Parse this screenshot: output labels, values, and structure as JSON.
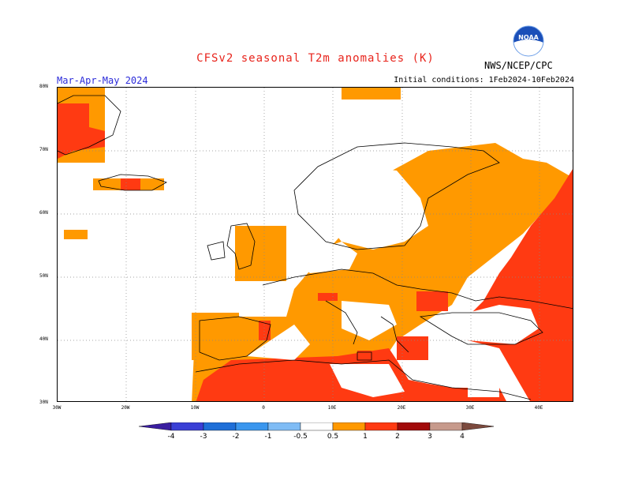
{
  "title": "CFSv2 seasonal T2m anomalies (K)",
  "agency": "NWS/NCEP/CPC",
  "logo_text": "NOAA",
  "season": "Mar-Apr-May 2024",
  "initial_conditions": "Initial conditions: 1Feb2024-10Feb2024",
  "lat_labels": [
    "80N",
    "70N",
    "60N",
    "50N",
    "40N",
    "30N"
  ],
  "lon_labels": [
    "30W",
    "20W",
    "10W",
    "0",
    "10E",
    "20E",
    "30E",
    "40E"
  ],
  "colorbar": {
    "labels": [
      "-4",
      "-3",
      "-2",
      "-1",
      "-0.5",
      "0.5",
      "1",
      "2",
      "3",
      "4"
    ],
    "colors": [
      "#3a1ea0",
      "#3a3fd6",
      "#1f6fd8",
      "#3a96ee",
      "#7fbcf5",
      "#ffffff",
      "#ff9900",
      "#ff3a12",
      "#a20a0a",
      "#c79a8c",
      "#7c4a3e"
    ]
  },
  "legend_colors": {
    "warm1": "#ff9900",
    "warm2": "#ff3a12",
    "land": "#000000"
  }
}
